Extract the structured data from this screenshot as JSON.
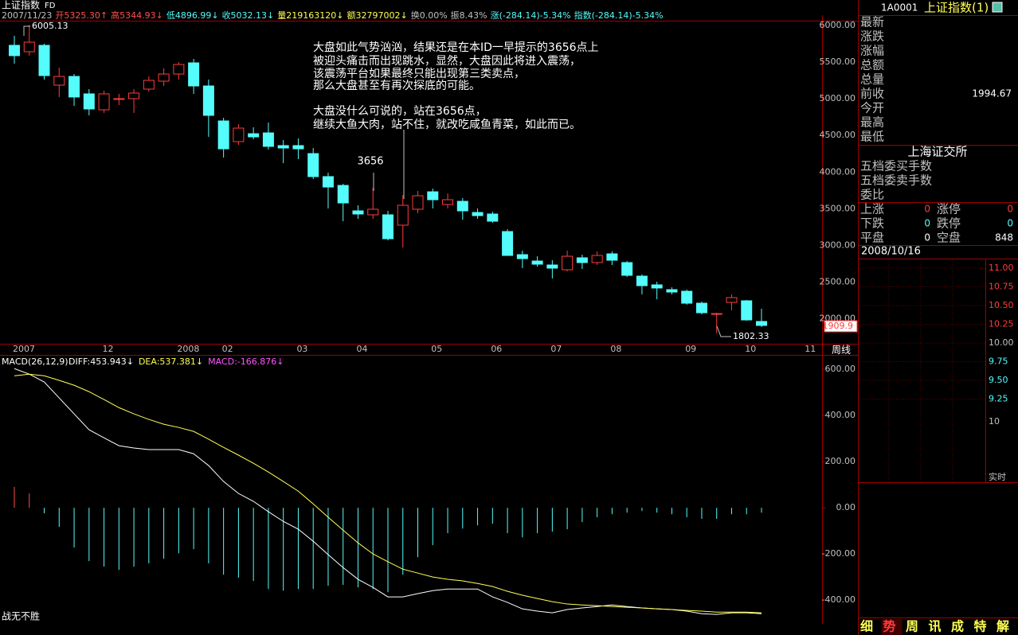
{
  "header": {
    "title": "上证指数",
    "period": "FD",
    "info": [
      "2007/11/23",
      "开5325.30↑",
      "高5344.93↓",
      "低4896.99↓",
      "收5032.13↓",
      "量219163120↓",
      "额32797002↓",
      "换0.00%",
      "振8.43%",
      "涨(-284.14)-5.34%",
      "指数(-284.14)-5.34%"
    ]
  },
  "chart_data": [
    {
      "type": "candlestick",
      "categories": [
        "2007",
        null,
        null,
        null,
        null,
        null,
        "12",
        null,
        null,
        null,
        null,
        "2008",
        null,
        null,
        "02",
        null,
        null,
        null,
        null,
        "03",
        null,
        null,
        null,
        "04",
        null,
        null,
        null,
        null,
        "05",
        null,
        null,
        null,
        "06",
        null,
        null,
        null,
        "07",
        null,
        null,
        null,
        "08",
        null,
        null,
        null,
        null,
        "09",
        null,
        null,
        null,
        "10",
        null,
        null,
        null,
        "11"
      ],
      "open": [
        5729,
        5642,
        5729,
        5186,
        5305,
        5067,
        4850,
        5000,
        5002,
        5132,
        5240,
        5338,
        5490,
        5175,
        4698,
        4416,
        4524,
        4535,
        4362,
        4362,
        4253,
        3939,
        3819,
        3472,
        3418,
        3418,
        3277,
        3494,
        3732,
        3559,
        3602,
        3450,
        3429,
        3190,
        2875,
        2788,
        2734,
        2669,
        2832,
        2767,
        2886,
        2767,
        2582,
        2463,
        2398,
        2376,
        2213,
        2061,
        2224,
        2246,
        1964,
        null,
        null,
        null
      ],
      "high": [
        5859,
        6005.13,
        5750,
        5425,
        5338,
        5132,
        5110,
        5067,
        5132,
        5306,
        5414,
        5501,
        5544,
        5262,
        4741,
        4654,
        4611,
        4676,
        4437,
        4459,
        4329,
        3993,
        3841,
        3548,
        3786,
        3472,
        3689,
        3743,
        3776,
        3711,
        3646,
        3504,
        3461,
        3223,
        2929,
        2853,
        2799,
        2929,
        2875,
        2919,
        2919,
        2788,
        2604,
        2506,
        2430,
        2398,
        2235,
        2083,
        2333,
        2257,
        2137,
        null,
        null,
        null
      ],
      "low": [
        5479,
        5588,
        5262,
        5024,
        4904,
        4774,
        4807,
        4915,
        4807,
        5099,
        5175,
        5262,
        5067,
        4481,
        4199,
        4372,
        4448,
        4307,
        4123,
        4177,
        3906,
        3504,
        3331,
        3363,
        3363,
        3070,
        2973,
        3439,
        3505,
        3505,
        3353,
        3363,
        3309,
        2864,
        2691,
        2712,
        2550,
        2647,
        2680,
        2734,
        2734,
        2571,
        2333,
        2268,
        2333,
        2192,
        2061,
        1802.33,
        2116,
        1974,
        1888,
        null,
        null,
        null
      ],
      "close": [
        5588,
        5772,
        5316,
        5305,
        5024,
        4861,
        5067,
        5002,
        5078,
        5251,
        5338,
        5468,
        5175,
        4774,
        4318,
        4600,
        4481,
        4351,
        4329,
        4318,
        3939,
        3797,
        3580,
        3429,
        3494,
        3092,
        3548,
        3678,
        3624,
        3624,
        3472,
        3407,
        3331,
        2864,
        2821,
        2745,
        2691,
        2853,
        2767,
        2864,
        2799,
        2593,
        2452,
        2420,
        2365,
        2213,
        2083,
        2072,
        2289,
        1985,
        1909.9,
        null,
        null,
        null
      ],
      "up_color": "#ff3c3c",
      "down_color": "#54fcfc",
      "ylim": [
        1660,
        6130
      ],
      "yticks": [
        {
          "value": 6000,
          "label": "6000.00"
        },
        {
          "value": 5500,
          "label": "5500.00"
        },
        {
          "value": 5000,
          "label": "5000.00"
        },
        {
          "value": 4500,
          "label": "4500.00"
        },
        {
          "value": 4000,
          "label": "4000.00"
        },
        {
          "value": 3500,
          "label": "3500.00"
        },
        {
          "value": 3000,
          "label": "3000.00"
        },
        {
          "value": 2500,
          "label": "2500.00"
        },
        {
          "value": 2000,
          "label": "2000.00"
        }
      ],
      "period_label": "周线",
      "annotations": [
        "6005.13",
        "1802.33",
        "3656",
        "1909.9",
        "大盘如此气势汹汹，结果还是在本ID一早提示的3656点上",
        "被迎头痛击而出现跳水，显然，大盘因此将进入震荡，",
        "该震荡平台如果最终只能出现第三类卖点，",
        "那么大盘甚至有再次探底的可能。",
        "大盘没什么可说的，站在3656点，",
        "继续大鱼大肉，站不住，就改吃咸鱼青菜，如此而已。"
      ]
    },
    {
      "type": "macd",
      "title": "MACD(26,12,9)",
      "legend": [
        {
          "text": "DIFF:453.943↓",
          "color": "#ffffff"
        },
        {
          "text": "DEA:537.381↓",
          "color": "#ffff54"
        },
        {
          "text": "MACD:-166.876↓",
          "color": "#ff54ff"
        }
      ],
      "histogram": [
        90,
        62,
        -24,
        -83,
        -172,
        -231,
        -255,
        -269,
        -255,
        -241,
        -221,
        -197,
        -179,
        -241,
        -290,
        -303,
        -317,
        -352,
        -359,
        -352,
        -352,
        -338,
        -334,
        -345,
        -352,
        -366,
        -290,
        -214,
        -162,
        -110,
        -90,
        -76,
        -69,
        -110,
        -128,
        -110,
        -103,
        -93,
        -62,
        -41,
        -28,
        -21,
        -14,
        -21,
        -28,
        -41,
        -48,
        -48,
        -28,
        -28,
        -21
      ],
      "up_color": "#ff5050",
      "down_color": "#54fcfc",
      "series": [
        {
          "color": "#ffffff",
          "values": [
            603,
            579,
            545,
            476,
            407,
            338,
            303,
            269,
            259,
            252,
            252,
            252,
            234,
            183,
            114,
            62,
            28,
            -17,
            -59,
            -93,
            -145,
            -203,
            -259,
            -310,
            -345,
            -386,
            -386,
            -372,
            -359,
            -352,
            -352,
            -352,
            -386,
            -410,
            -438,
            -448,
            -455,
            -441,
            -434,
            -428,
            -421,
            -428,
            -434,
            -438,
            -441,
            -448,
            -459,
            -462,
            -455,
            -455,
            -459
          ]
        },
        {
          "color": "#ffff54",
          "values": [
            572,
            579,
            572,
            552,
            531,
            503,
            469,
            434,
            407,
            383,
            362,
            348,
            331,
            297,
            262,
            228,
            193,
            155,
            114,
            72,
            17,
            -41,
            -97,
            -152,
            -200,
            -234,
            -266,
            -283,
            -300,
            -310,
            -317,
            -328,
            -341,
            -362,
            -379,
            -393,
            -407,
            -417,
            -421,
            -424,
            -428,
            -431,
            -434,
            -438,
            -441,
            -445,
            -448,
            -452,
            -452,
            -452,
            -455
          ]
        }
      ],
      "ylim": [
        -503,
        659
      ],
      "yticks": [
        {
          "value": 600,
          "label": "600.00"
        },
        {
          "value": 400,
          "label": "400.00"
        },
        {
          "value": 200,
          "label": "200.00"
        },
        {
          "value": 0,
          "label": "0.00"
        },
        {
          "value": -200,
          "label": "-200.00"
        },
        {
          "value": -400,
          "label": "-400.00"
        }
      ],
      "footer": "战无不胜"
    }
  ],
  "side_panel": {
    "code": "1A0001",
    "name": "上证指数(1)",
    "quote_labels": [
      "最新",
      "涨跌",
      "涨幅",
      "总额",
      "总量",
      "前收",
      "今开",
      "最高",
      "最低"
    ],
    "prev_close": "1994.67",
    "exchange": "上海证交所",
    "order_labels": [
      "五档委买手数",
      "五档委卖手数",
      "委比"
    ],
    "breadth": [
      [
        "上涨",
        "0",
        "涨停",
        "0"
      ],
      [
        "下跌",
        "0",
        "跌停",
        "0"
      ],
      [
        "平盘",
        "0",
        "空盘",
        "848"
      ]
    ],
    "date": "2008/10/16",
    "mini_axis": [
      "11.00",
      "10.75",
      "10.50",
      "10.25",
      "10.00",
      "9.75",
      "9.50",
      "9.25"
    ],
    "mini_volume_axis": "10",
    "mini_label": "实时",
    "tabs": [
      "细",
      "势",
      "周",
      "讯",
      "成",
      "特",
      "解"
    ]
  }
}
